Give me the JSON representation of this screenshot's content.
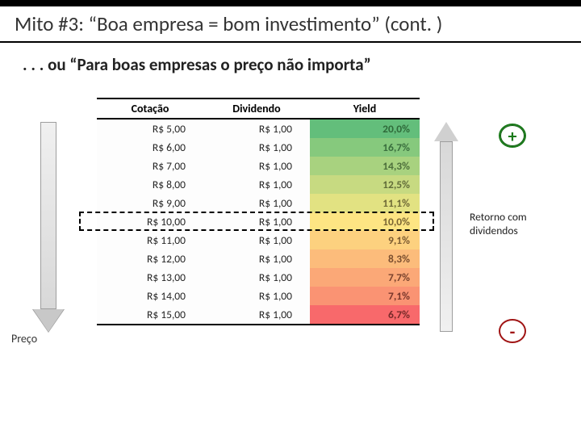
{
  "title": "Mito #3: “Boa empresa = bom investimento” (cont. )",
  "subtitle": ". . . ou “Para boas empresas o preço não importa”",
  "left_label": "Preço",
  "right_label": "Retorno com dividendos",
  "plus_symbol": "+",
  "minus_symbol": "-",
  "table": {
    "headers": [
      "Cotação",
      "Dividendo",
      "Yield"
    ],
    "rows": [
      {
        "cotacao": "R$ 5,00",
        "dividendo": "R$ 1,00",
        "yield": "20,0%",
        "yield_bg": "#63be7b",
        "yield_color": "#2f6a3a"
      },
      {
        "cotacao": "R$ 6,00",
        "dividendo": "R$ 1,00",
        "yield": "16,7%",
        "yield_bg": "#86c97d",
        "yield_color": "#3a6f3e"
      },
      {
        "cotacao": "R$ 7,00",
        "dividendo": "R$ 1,00",
        "yield": "14,3%",
        "yield_bg": "#a8d27f",
        "yield_color": "#4d6f3b"
      },
      {
        "cotacao": "R$ 8,00",
        "dividendo": "R$ 1,00",
        "yield": "12,5%",
        "yield_bg": "#c7da81",
        "yield_color": "#616c39"
      },
      {
        "cotacao": "R$ 9,00",
        "dividendo": "R$ 1,00",
        "yield": "11,1%",
        "yield_bg": "#e2e282",
        "yield_color": "#6f6a37"
      },
      {
        "cotacao": "R$ 10,00",
        "dividendo": "R$ 1,00",
        "yield": "10,0%",
        "yield_bg": "#fde583",
        "yield_color": "#7a6634",
        "highlight": true
      },
      {
        "cotacao": "R$ 11,00",
        "dividendo": "R$ 1,00",
        "yield": "9,1%",
        "yield_bg": "#fdd17f",
        "yield_color": "#7a5a31"
      },
      {
        "cotacao": "R$ 12,00",
        "dividendo": "R$ 1,00",
        "yield": "8,3%",
        "yield_bg": "#fcbc7b",
        "yield_color": "#7a4e2f"
      },
      {
        "cotacao": "R$ 13,00",
        "dividendo": "R$ 1,00",
        "yield": "7,7%",
        "yield_bg": "#fba877",
        "yield_color": "#79422d"
      },
      {
        "cotacao": "R$ 14,00",
        "dividendo": "R$ 1,00",
        "yield": "7,1%",
        "yield_bg": "#fa9373",
        "yield_color": "#78362b"
      },
      {
        "cotacao": "R$ 15,00",
        "dividendo": "R$ 1,00",
        "yield": "6,7%",
        "yield_bg": "#f8696b",
        "yield_color": "#772a29"
      }
    ]
  }
}
